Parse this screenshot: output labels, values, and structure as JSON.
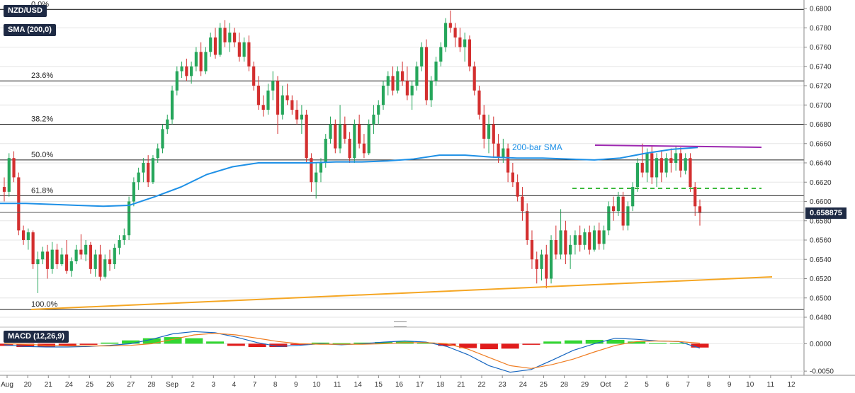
{
  "chart_data": {
    "type": "candlestick",
    "symbol": "NZD/USD",
    "indicator_badge": "SMA (200,0)",
    "current_price": "0.658875",
    "y_axis_ticks": [
      "0.6800",
      "0.6780",
      "0.6760",
      "0.6740",
      "0.6720",
      "0.6700",
      "0.6680",
      "0.6660",
      "0.6640",
      "0.6620",
      "0.6600",
      "0.6580",
      "0.6560",
      "0.6540",
      "0.6520",
      "0.6500",
      "0.6480"
    ],
    "ylim": [
      0.648,
      0.68
    ],
    "x_axis_labels": [
      "Aug",
      "20",
      "21",
      "24",
      "25",
      "26",
      "27",
      "28",
      "Sep",
      "2",
      "3",
      "4",
      "7",
      "8",
      "9",
      "10",
      "11",
      "14",
      "15",
      "16",
      "17",
      "18",
      "21",
      "22",
      "23",
      "24",
      "25",
      "28",
      "29",
      "Oct",
      "2",
      "5",
      "6",
      "7",
      "8",
      "9",
      "10",
      "11",
      "12"
    ],
    "fibonacci": [
      {
        "label": "0.0%",
        "value": 0.6799
      },
      {
        "label": "23.6%",
        "value": 0.6725
      },
      {
        "label": "38.2%",
        "value": 0.668
      },
      {
        "label": "50.0%",
        "value": 0.6643
      },
      {
        "label": "61.8%",
        "value": 0.6606
      },
      {
        "label": "100.0%",
        "value": 0.6488
      }
    ],
    "annotations": {
      "sma_label": "200-bar SMA"
    },
    "candles": [
      [
        0.6615,
        0.6625,
        0.66,
        0.661
      ],
      [
        0.661,
        0.665,
        0.6605,
        0.6645
      ],
      [
        0.6645,
        0.6652,
        0.662,
        0.6625
      ],
      [
        0.6625,
        0.663,
        0.6565,
        0.657
      ],
      [
        0.657,
        0.6575,
        0.6555,
        0.656
      ],
      [
        0.656,
        0.6572,
        0.655,
        0.6568
      ],
      [
        0.6568,
        0.657,
        0.653,
        0.6535
      ],
      [
        0.6535,
        0.6548,
        0.6505,
        0.654
      ],
      [
        0.654,
        0.6553,
        0.6535,
        0.6548
      ],
      [
        0.6548,
        0.6555,
        0.652,
        0.653
      ],
      [
        0.653,
        0.6558,
        0.6525,
        0.655
      ],
      [
        0.655,
        0.6556,
        0.653,
        0.6535
      ],
      [
        0.6535,
        0.6552,
        0.6533,
        0.6545
      ],
      [
        0.6545,
        0.656,
        0.6525,
        0.6528
      ],
      [
        0.6528,
        0.6542,
        0.6522,
        0.6538
      ],
      [
        0.6538,
        0.6555,
        0.6535,
        0.655
      ],
      [
        0.655,
        0.6566,
        0.654,
        0.6545
      ],
      [
        0.6545,
        0.656,
        0.6538,
        0.6555
      ],
      [
        0.6555,
        0.6558,
        0.6525,
        0.653
      ],
      [
        0.653,
        0.655,
        0.6522,
        0.6545
      ],
      [
        0.6545,
        0.6555,
        0.6518,
        0.6522
      ],
      [
        0.6522,
        0.6545,
        0.652,
        0.654
      ],
      [
        0.654,
        0.655,
        0.6528,
        0.6535
      ],
      [
        0.6535,
        0.6556,
        0.653,
        0.6552
      ],
      [
        0.6552,
        0.6565,
        0.6545,
        0.656
      ],
      [
        0.656,
        0.6572,
        0.6555,
        0.6565
      ],
      [
        0.6565,
        0.6605,
        0.656,
        0.66
      ],
      [
        0.66,
        0.6625,
        0.6595,
        0.662
      ],
      [
        0.662,
        0.6635,
        0.6612,
        0.663
      ],
      [
        0.663,
        0.6645,
        0.662,
        0.664
      ],
      [
        0.664,
        0.6648,
        0.6615,
        0.662
      ],
      [
        0.662,
        0.6648,
        0.6618,
        0.6645
      ],
      [
        0.6645,
        0.666,
        0.664,
        0.6655
      ],
      [
        0.6655,
        0.668,
        0.665,
        0.6675
      ],
      [
        0.6675,
        0.669,
        0.667,
        0.6685
      ],
      [
        0.6685,
        0.672,
        0.668,
        0.6715
      ],
      [
        0.6715,
        0.674,
        0.671,
        0.6735
      ],
      [
        0.6735,
        0.6745,
        0.6728,
        0.674
      ],
      [
        0.674,
        0.6748,
        0.6725,
        0.673
      ],
      [
        0.673,
        0.6745,
        0.6722,
        0.674
      ],
      [
        0.674,
        0.676,
        0.6735,
        0.6755
      ],
      [
        0.6755,
        0.6765,
        0.673,
        0.6735
      ],
      [
        0.6735,
        0.676,
        0.6732,
        0.6755
      ],
      [
        0.6755,
        0.6775,
        0.675,
        0.677
      ],
      [
        0.677,
        0.678,
        0.6748,
        0.6752
      ],
      [
        0.6752,
        0.6785,
        0.675,
        0.678
      ],
      [
        0.678,
        0.6788,
        0.676,
        0.6765
      ],
      [
        0.6765,
        0.6785,
        0.6755,
        0.6775
      ],
      [
        0.6775,
        0.678,
        0.676,
        0.6765
      ],
      [
        0.6765,
        0.6775,
        0.6745,
        0.675
      ],
      [
        0.675,
        0.677,
        0.6745,
        0.6765
      ],
      [
        0.6765,
        0.6772,
        0.6735,
        0.674
      ],
      [
        0.674,
        0.6745,
        0.6715,
        0.672
      ],
      [
        0.672,
        0.673,
        0.6695,
        0.67
      ],
      [
        0.67,
        0.671,
        0.6688,
        0.6695
      ],
      [
        0.6695,
        0.6722,
        0.669,
        0.6715
      ],
      [
        0.6715,
        0.6735,
        0.6705,
        0.6725
      ],
      [
        0.6725,
        0.673,
        0.667,
        0.669
      ],
      [
        0.669,
        0.672,
        0.6685,
        0.671
      ],
      [
        0.671,
        0.6722,
        0.67,
        0.6705
      ],
      [
        0.6705,
        0.671,
        0.669,
        0.6695
      ],
      [
        0.6695,
        0.6705,
        0.668,
        0.6685
      ],
      [
        0.6685,
        0.67,
        0.667,
        0.669
      ],
      [
        0.669,
        0.6695,
        0.664,
        0.6645
      ],
      [
        0.6645,
        0.665,
        0.661,
        0.662
      ],
      [
        0.662,
        0.664,
        0.6603,
        0.663
      ],
      [
        0.663,
        0.6645,
        0.662,
        0.664
      ],
      [
        0.664,
        0.667,
        0.6635,
        0.6665
      ],
      [
        0.6665,
        0.6688,
        0.666,
        0.668
      ],
      [
        0.668,
        0.6685,
        0.665,
        0.6655
      ],
      [
        0.6655,
        0.67,
        0.665,
        0.668
      ],
      [
        0.668,
        0.6688,
        0.666,
        0.6665
      ],
      [
        0.6665,
        0.6672,
        0.664,
        0.6645
      ],
      [
        0.6645,
        0.6685,
        0.664,
        0.668
      ],
      [
        0.668,
        0.669,
        0.6655,
        0.666
      ],
      [
        0.666,
        0.667,
        0.6645,
        0.665
      ],
      [
        0.665,
        0.6685,
        0.6648,
        0.668
      ],
      [
        0.668,
        0.67,
        0.667,
        0.669
      ],
      [
        0.669,
        0.6705,
        0.668,
        0.67
      ],
      [
        0.67,
        0.6725,
        0.6695,
        0.672
      ],
      [
        0.672,
        0.6735,
        0.671,
        0.673
      ],
      [
        0.673,
        0.674,
        0.671,
        0.6715
      ],
      [
        0.6715,
        0.674,
        0.6712,
        0.6735
      ],
      [
        0.6735,
        0.6745,
        0.672,
        0.6725
      ],
      [
        0.6725,
        0.674,
        0.6705,
        0.671
      ],
      [
        0.671,
        0.6725,
        0.6695,
        0.672
      ],
      [
        0.672,
        0.6745,
        0.6715,
        0.674
      ],
      [
        0.674,
        0.6765,
        0.6735,
        0.676
      ],
      [
        0.676,
        0.6768,
        0.67,
        0.6705
      ],
      [
        0.6705,
        0.673,
        0.6698,
        0.6725
      ],
      [
        0.6725,
        0.675,
        0.672,
        0.6745
      ],
      [
        0.6745,
        0.6765,
        0.674,
        0.676
      ],
      [
        0.676,
        0.679,
        0.6755,
        0.6785
      ],
      [
        0.6785,
        0.6798,
        0.6775,
        0.678
      ],
      [
        0.678,
        0.6785,
        0.676,
        0.677
      ],
      [
        0.677,
        0.678,
        0.6755,
        0.676
      ],
      [
        0.676,
        0.6775,
        0.6745,
        0.6768
      ],
      [
        0.6768,
        0.6772,
        0.6735,
        0.674
      ],
      [
        0.674,
        0.6745,
        0.671,
        0.6715
      ],
      [
        0.6715,
        0.672,
        0.6685,
        0.669
      ],
      [
        0.669,
        0.67,
        0.6655,
        0.6665
      ],
      [
        0.6665,
        0.669,
        0.665,
        0.668
      ],
      [
        0.668,
        0.6688,
        0.6645,
        0.666
      ],
      [
        0.666,
        0.667,
        0.664,
        0.6645
      ],
      [
        0.6645,
        0.6665,
        0.664,
        0.6655
      ],
      [
        0.6655,
        0.666,
        0.662,
        0.663
      ],
      [
        0.663,
        0.664,
        0.6615,
        0.662
      ],
      [
        0.662,
        0.6628,
        0.66,
        0.6605
      ],
      [
        0.6605,
        0.6615,
        0.658,
        0.659
      ],
      [
        0.659,
        0.6598,
        0.6555,
        0.656
      ],
      [
        0.656,
        0.657,
        0.653,
        0.654
      ],
      [
        0.654,
        0.6548,
        0.6515,
        0.653
      ],
      [
        0.653,
        0.655,
        0.6518,
        0.6545
      ],
      [
        0.6545,
        0.6555,
        0.651,
        0.652
      ],
      [
        0.652,
        0.6565,
        0.6515,
        0.656
      ],
      [
        0.656,
        0.6575,
        0.654,
        0.6545
      ],
      [
        0.6545,
        0.6592,
        0.654,
        0.657
      ],
      [
        0.657,
        0.658,
        0.6535,
        0.6545
      ],
      [
        0.6545,
        0.6565,
        0.653,
        0.6555
      ],
      [
        0.6555,
        0.657,
        0.6545,
        0.6565
      ],
      [
        0.6565,
        0.6575,
        0.6548,
        0.6555
      ],
      [
        0.6555,
        0.6572,
        0.655,
        0.6568
      ],
      [
        0.6568,
        0.6575,
        0.6545,
        0.655
      ],
      [
        0.655,
        0.6575,
        0.6548,
        0.657
      ],
      [
        0.657,
        0.6578,
        0.655,
        0.6556
      ],
      [
        0.6556,
        0.6575,
        0.655,
        0.657
      ],
      [
        0.657,
        0.66,
        0.6565,
        0.6595
      ],
      [
        0.6595,
        0.6605,
        0.658,
        0.659
      ],
      [
        0.659,
        0.661,
        0.6585,
        0.6605
      ],
      [
        0.6605,
        0.661,
        0.657,
        0.6575
      ],
      [
        0.6575,
        0.66,
        0.657,
        0.6595
      ],
      [
        0.6595,
        0.662,
        0.659,
        0.6615
      ],
      [
        0.6615,
        0.6645,
        0.661,
        0.664
      ],
      [
        0.664,
        0.666,
        0.6625,
        0.663
      ],
      [
        0.663,
        0.6655,
        0.662,
        0.665
      ],
      [
        0.665,
        0.6658,
        0.6618,
        0.6625
      ],
      [
        0.6625,
        0.665,
        0.6615,
        0.6645
      ],
      [
        0.6645,
        0.6652,
        0.662,
        0.663
      ],
      [
        0.663,
        0.665,
        0.6625,
        0.6645
      ],
      [
        0.6645,
        0.6655,
        0.663,
        0.664
      ],
      [
        0.664,
        0.6658,
        0.6632,
        0.665
      ],
      [
        0.665,
        0.6656,
        0.6625,
        0.6632
      ],
      [
        0.6632,
        0.665,
        0.6628,
        0.6645
      ],
      [
        0.6645,
        0.665,
        0.661,
        0.6615
      ],
      [
        0.6615,
        0.662,
        0.6585,
        0.6595
      ],
      [
        0.6595,
        0.6602,
        0.6575,
        0.6588
      ]
    ],
    "sma200": [
      0.6598,
      0.6598,
      0.6597,
      0.6596,
      0.6595,
      0.6596,
      0.6605,
      0.6615,
      0.6628,
      0.6636,
      0.664,
      0.664,
      0.664,
      0.6641,
      0.6641,
      0.6642,
      0.6644,
      0.6648,
      0.6648,
      0.6646,
      0.6645,
      0.6645,
      0.6644,
      0.6643,
      0.6645,
      0.665,
      0.6654,
      0.6656
    ],
    "macd": {
      "label": "MACD (12,26,9)",
      "y_axis_ticks": [
        "0.0000",
        "-0.0050"
      ],
      "ylim": [
        -0.0055,
        0.0025
      ],
      "macd_line": [
        -0.0002,
        -0.0005,
        -0.0006,
        -0.0006,
        -0.0005,
        -0.0003,
        0.0,
        0.0008,
        0.0018,
        0.0022,
        0.002,
        0.0012,
        0.0002,
        -0.0005,
        -0.0003,
        0.0,
        -0.0002,
        0.0,
        0.0003,
        0.0005,
        0.0003,
        -0.0005,
        -0.002,
        -0.004,
        -0.0052,
        -0.0047,
        -0.003,
        -0.0012,
        0.0,
        0.001,
        0.0008,
        0.0005,
        0.0004,
        -0.0008
      ],
      "signal_line": [
        0.0,
        -0.0001,
        -0.0003,
        -0.0004,
        -0.0004,
        -0.0004,
        -0.0003,
        0.0,
        0.0008,
        0.0016,
        0.0019,
        0.0016,
        0.001,
        0.0004,
        0.0,
        -0.0001,
        -0.0001,
        -0.0001,
        0.0,
        0.0002,
        0.0002,
        0.0,
        -0.001,
        -0.0025,
        -0.004,
        -0.0045,
        -0.0038,
        -0.0028,
        -0.0015,
        -0.0003,
        0.0004,
        0.0005,
        0.0004,
        0.0001
      ],
      "histogram": [
        -0.0004,
        -0.0006,
        -0.0006,
        -0.0004,
        -0.0002,
        0.0002,
        0.0006,
        0.001,
        0.0012,
        0.001,
        0.0004,
        -0.0004,
        -0.0006,
        -0.0006,
        -0.0002,
        0.0002,
        0.0001,
        0.0002,
        0.0003,
        0.0004,
        0.0002,
        -0.0004,
        -0.0008,
        -0.001,
        -0.0009,
        -0.0002,
        0.0004,
        0.0006,
        0.0007,
        0.0007,
        0.0004,
        0.0001,
        0.0001,
        -0.0007
      ]
    },
    "colors": {
      "bull": "#26a65b",
      "bear": "#d32f2f",
      "sma": "#1e90e6",
      "resistance": "#9c27b0",
      "support_dashed": "#3cb93c",
      "trendline": "#f5a623",
      "macd": "#1565c0",
      "signal": "#ef7d22",
      "hist_pos": "#33d633",
      "hist_neg": "#e01c1c"
    }
  }
}
